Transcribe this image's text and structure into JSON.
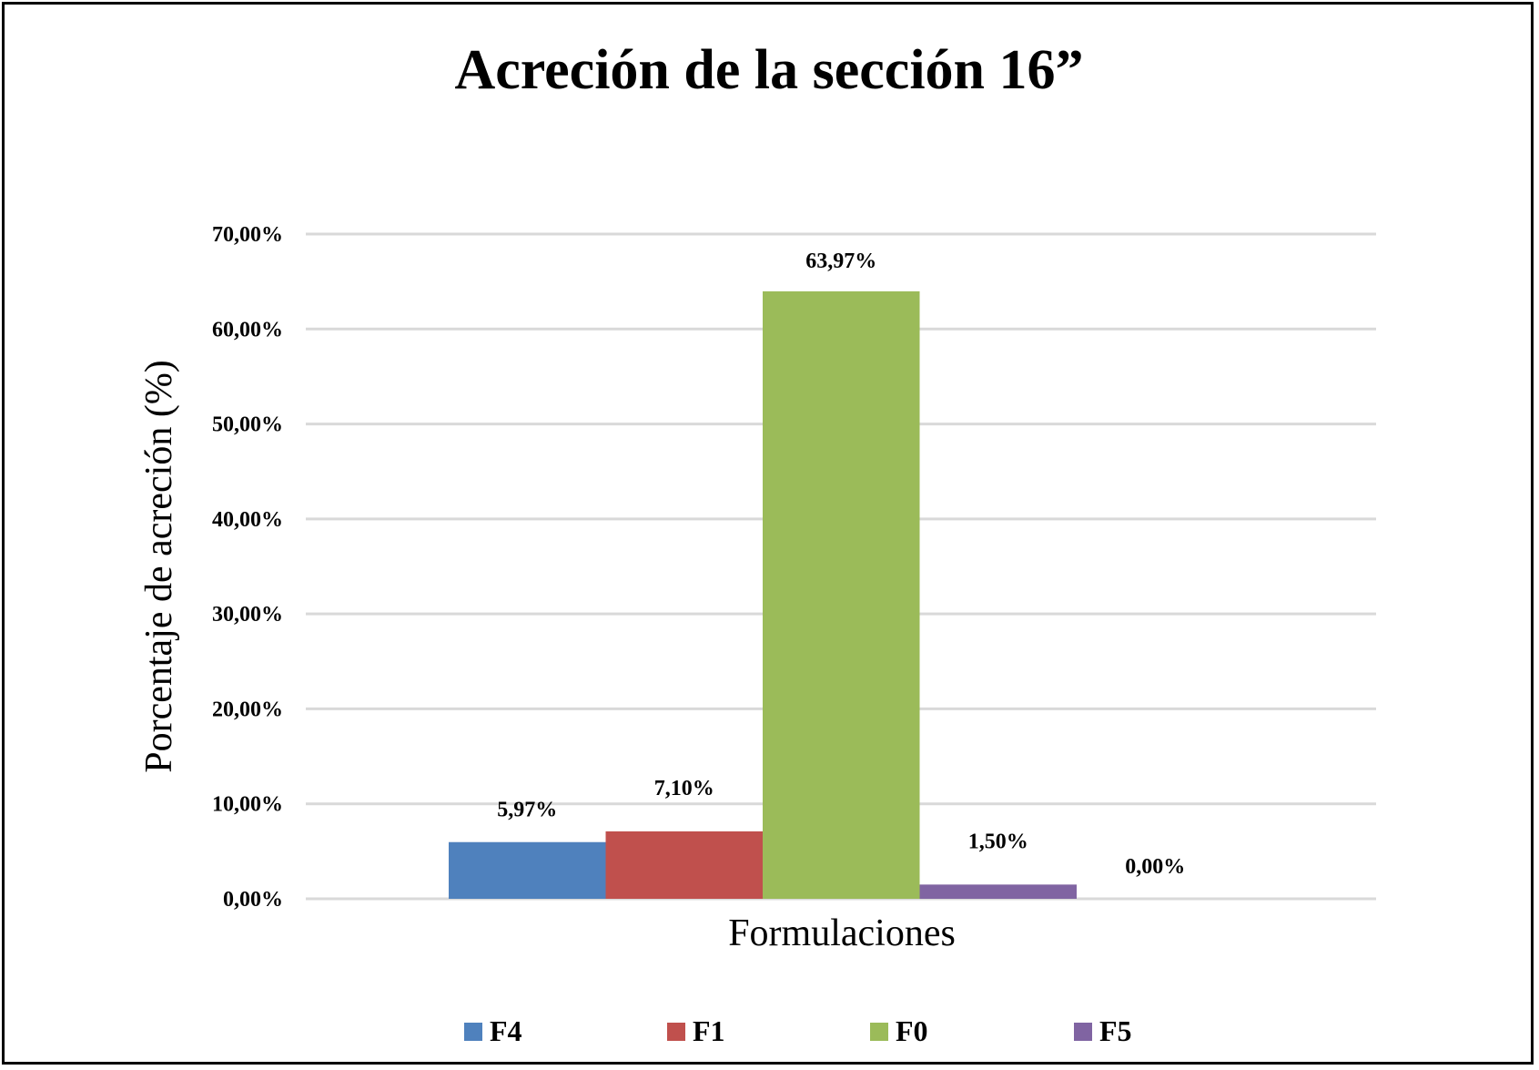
{
  "chart_data": {
    "type": "bar",
    "title": "Acreción de la sección 16”",
    "xlabel": "Formulaciones",
    "ylabel": "Porcentaje de acreción (%)",
    "ylim": [
      0,
      70
    ],
    "yticks": [
      0,
      10,
      20,
      30,
      40,
      50,
      60,
      70
    ],
    "ytick_labels": [
      "0,00%",
      "10,00%",
      "20,00%",
      "30,00%",
      "40,00%",
      "50,00%",
      "60,00%",
      "70,00%"
    ],
    "grid": true,
    "legend_position": "bottom",
    "categories": [
      ""
    ],
    "series": [
      {
        "name": "F4",
        "values": [
          5.97
        ],
        "label": "5,97%",
        "color": "#4F81BD"
      },
      {
        "name": "F1",
        "values": [
          7.1
        ],
        "label": "7,10%",
        "color": "#C0504D"
      },
      {
        "name": "F0",
        "values": [
          63.97
        ],
        "label": "63,97%",
        "color": "#9BBB59"
      },
      {
        "name": "F5",
        "values": [
          1.5
        ],
        "label": "1,50%",
        "color": "#8064A2"
      },
      {
        "name": "",
        "values": [
          0.0
        ],
        "label": "0,00%",
        "color": "#4BACC6",
        "in_legend": false
      }
    ]
  }
}
